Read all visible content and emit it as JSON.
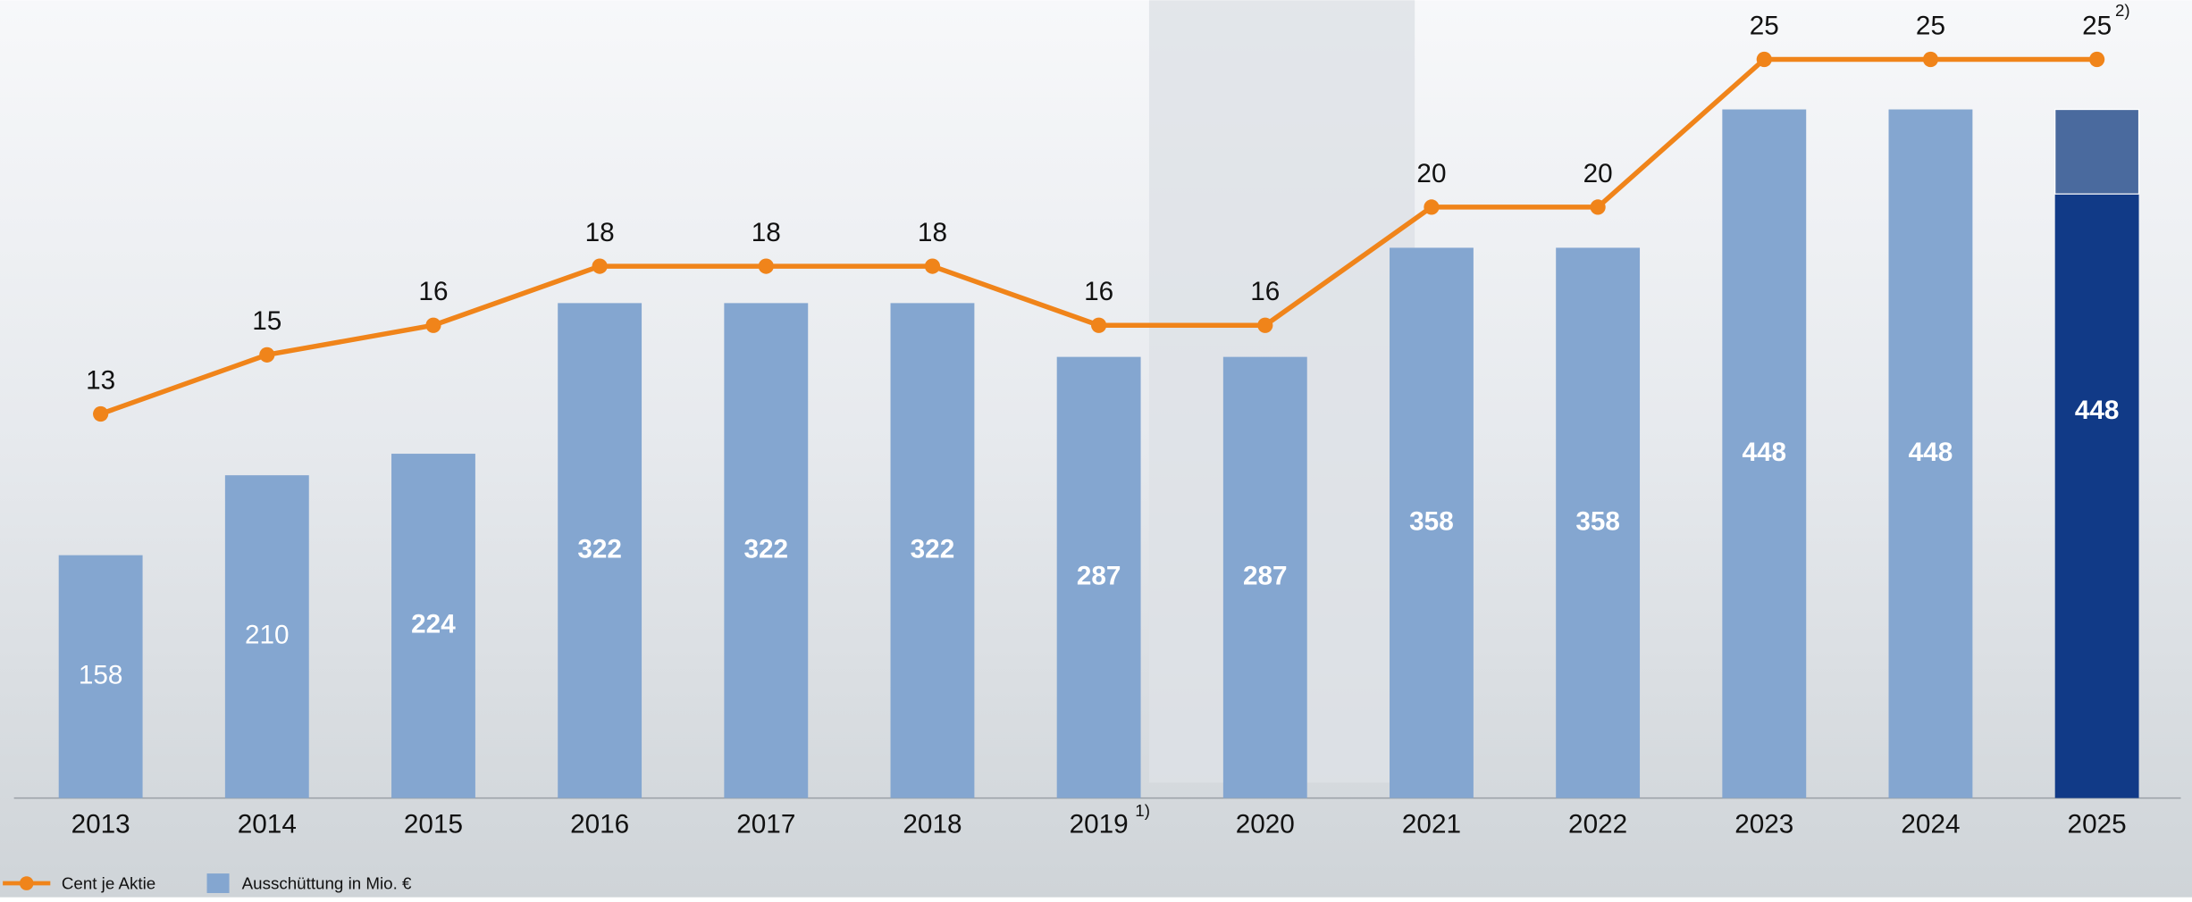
{
  "chart_data": {
    "type": "bar-line",
    "categories": [
      "2013",
      "2014",
      "2015",
      "2016",
      "2017",
      "2018",
      "2019",
      "2020",
      "2021",
      "2022",
      "2023",
      "2024",
      "2025"
    ],
    "category_notes": {
      "6": "1)"
    },
    "series": [
      {
        "name": "Ausschüttung in Mio. €",
        "type": "bar",
        "color": "#84a6d0",
        "values": [
          158,
          210,
          224,
          322,
          322,
          322,
          287,
          287,
          358,
          358,
          448,
          448,
          448
        ],
        "bar_colors": {
          "12": "#113a87"
        }
      },
      {
        "name": "Cent je Aktie",
        "type": "line",
        "axis": "y2",
        "color": "#f0841a",
        "values": [
          13,
          15,
          16,
          18,
          18,
          18,
          16,
          16,
          20,
          20,
          25,
          25,
          25
        ],
        "value_notes": {
          "12": "2)"
        }
      }
    ],
    "upper_part": {
      "index": 12,
      "value": 55,
      "color": "#4a6a9e"
    },
    "ylim": [
      0,
      519
    ],
    "y2lim": [
      0,
      27
    ]
  }
}
